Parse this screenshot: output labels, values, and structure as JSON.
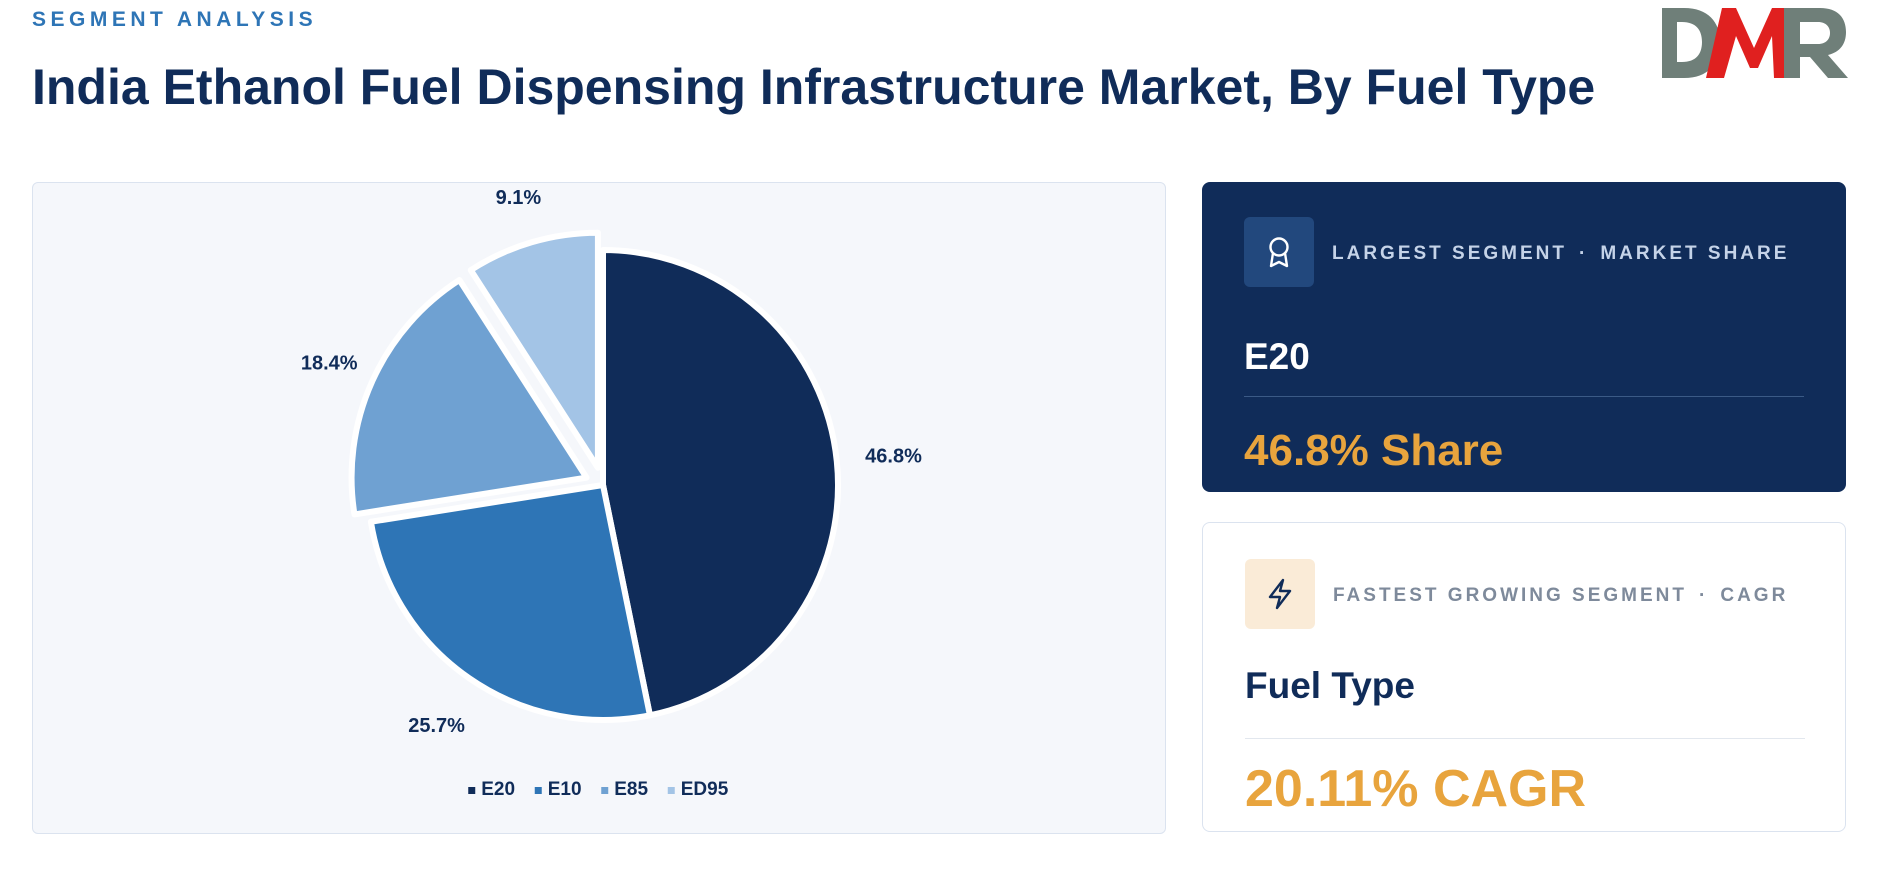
{
  "header": {
    "eyebrow": "SEGMENT ANALYSIS",
    "title": "India Ethanol Fuel Dispensing Infrastructure Market, By Fuel Type"
  },
  "logo": {
    "text": "DMR",
    "colors": {
      "d": "#6f7f79",
      "m": "#e0201f",
      "r": "#6f7f79"
    }
  },
  "chart_data": {
    "type": "pie",
    "categories": [
      "E20",
      "E10",
      "E85",
      "ED95"
    ],
    "values": [
      46.8,
      25.7,
      18.4,
      9.1
    ],
    "labels": [
      "46.8%",
      "25.7%",
      "18.4%",
      "9.1%"
    ],
    "colors": [
      "#102c59",
      "#2e75b6",
      "#6fa1d2",
      "#a3c4e6"
    ],
    "legend_position": "bottom-center",
    "exploded_slices": [
      "E85",
      "ED95"
    ],
    "start_angle_deg": 0,
    "direction": "clockwise"
  },
  "largest_segment": {
    "icon": "award-ribbon-icon",
    "label_left": "LARGEST SEGMENT",
    "separator": "·",
    "label_right": "MARKET SHARE",
    "name": "E20",
    "metric": "46.8% Share"
  },
  "fastest_segment": {
    "icon": "lightning-bolt-icon",
    "label_left": "FASTEST GROWING SEGMENT",
    "separator": "·",
    "label_right": "CAGR",
    "name": "Fuel Type",
    "metric": "20.11% CAGR"
  },
  "colors": {
    "navy": "#102c59",
    "accent_blue": "#2e75b6",
    "gold": "#e8a43d"
  }
}
